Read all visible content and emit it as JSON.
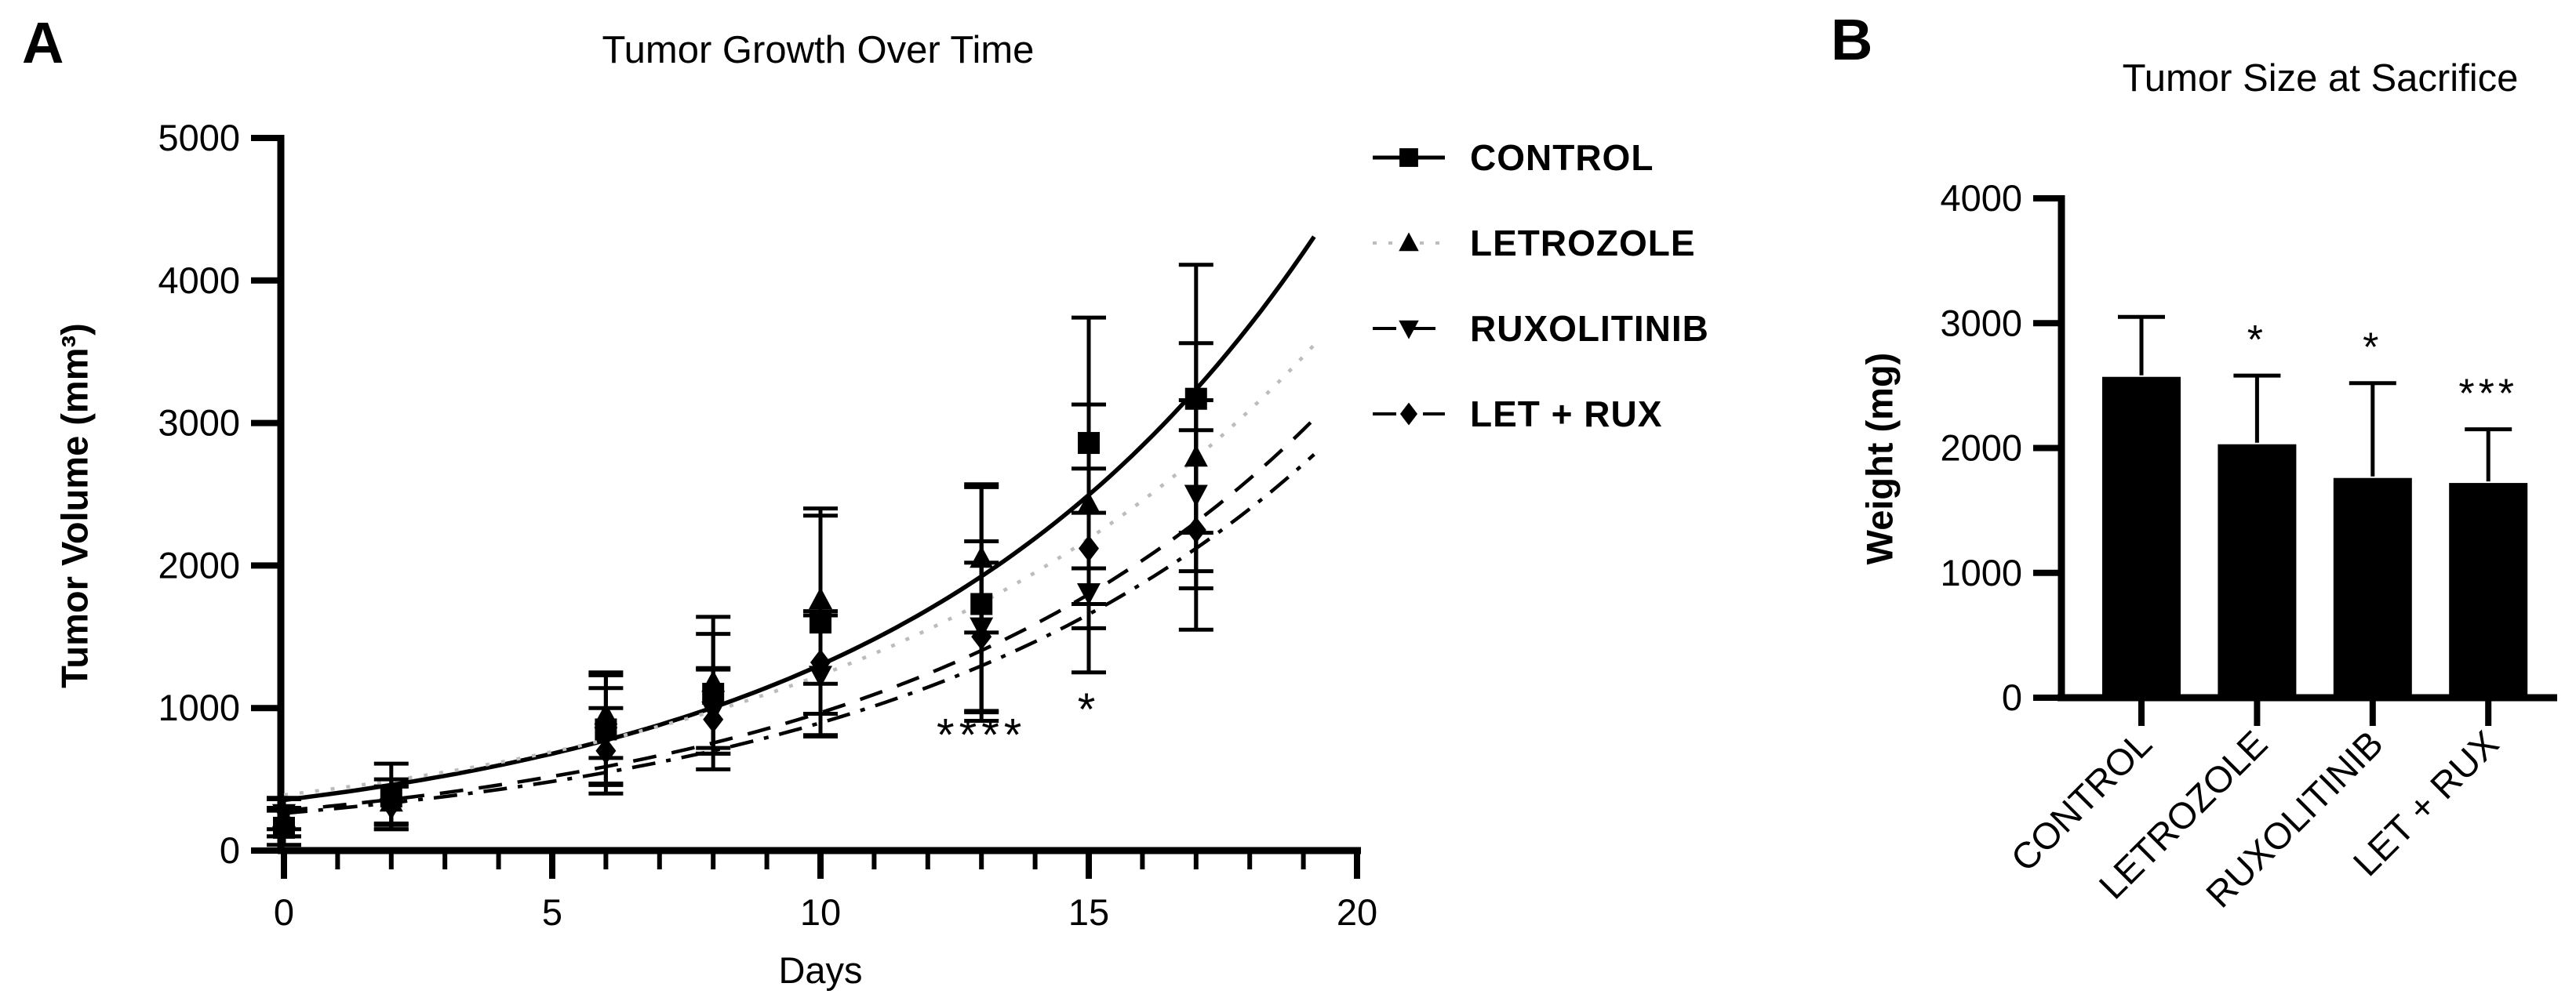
{
  "panels": {
    "a_letter": "A",
    "b_letter": "B"
  },
  "colors": {
    "foreground": "#000000",
    "background": "#ffffff",
    "letrozole_line": "#bcbcbc"
  },
  "chart_data": [
    {
      "panel": "A",
      "type": "line",
      "title": "Tumor Growth Over Time",
      "xlabel": "Days",
      "ylabel": "Tumor Volume (mm³)",
      "xlim": [
        0,
        20
      ],
      "ylim": [
        0,
        5000
      ],
      "xticks_labeled": [
        0,
        5,
        10,
        15,
        20
      ],
      "xticks_minor_every": 1,
      "yticks": [
        0,
        1000,
        2000,
        3000,
        4000,
        5000
      ],
      "grid": false,
      "legend_position": "right-of-plot",
      "x": [
        0,
        2,
        6,
        8,
        10,
        13,
        15,
        17
      ],
      "series": [
        {
          "name": "CONTROL",
          "marker": "square",
          "line_style": "solid",
          "line_color": "#000000",
          "values": [
            160,
            380,
            850,
            1100,
            1600,
            1730,
            2860,
            3170
          ],
          "errors": [
            120,
            230,
            380,
            420,
            800,
            820,
            880,
            940
          ],
          "fit": {
            "v0": 355,
            "k": 0.13
          }
        },
        {
          "name": "LETROZOLE",
          "marker": "triangle-up",
          "line_style": "dotted",
          "line_color": "#bcbcbc",
          "values": [
            230,
            340,
            950,
            1180,
            1760,
            2050,
            2430,
            2760
          ],
          "errors": [
            130,
            160,
            300,
            460,
            590,
            520,
            700,
            800
          ],
          "fit": {
            "v0": 390,
            "k": 0.115
          }
        },
        {
          "name": "RUXOLITINIB",
          "marker": "triangle-down",
          "line_style": "dashed",
          "line_color": "#000000",
          "values": [
            260,
            300,
            800,
            980,
            1230,
            1570,
            1810,
            2500
          ],
          "errors": [
            110,
            150,
            340,
            300,
            420,
            600,
            560,
            660
          ],
          "fit": {
            "v0": 280,
            "k": 0.124
          }
        },
        {
          "name": "LET + RUX",
          "marker": "diamond",
          "line_style": "dash-dot",
          "line_color": "#000000",
          "values": [
            200,
            320,
            700,
            920,
            1320,
            1500,
            2120,
            2250
          ],
          "errors": [
            100,
            130,
            300,
            350,
            360,
            520,
            560,
            700
          ],
          "fit": {
            "v0": 262,
            "k": 0.123
          }
        }
      ],
      "annotations": [
        {
          "text": "****",
          "x": 13,
          "y": 700
        },
        {
          "text": "*",
          "x": 15,
          "y": 880
        }
      ]
    },
    {
      "panel": "B",
      "type": "bar",
      "title": "Tumor Size at Sacrifice",
      "xlabel": "",
      "ylabel": "Weight (mg)",
      "ylim": [
        0,
        4000
      ],
      "yticks": [
        0,
        1000,
        2000,
        3000,
        4000
      ],
      "grid": false,
      "bar_color": "#000000",
      "categories": [
        "CONTROL",
        "LETROZOLE",
        "RUXOLITINIB",
        "LET + RUX"
      ],
      "values": [
        2570,
        2030,
        1760,
        1720
      ],
      "errors_upper": [
        480,
        550,
        760,
        430
      ],
      "significance": [
        "",
        "*",
        "*",
        "***"
      ]
    }
  ]
}
